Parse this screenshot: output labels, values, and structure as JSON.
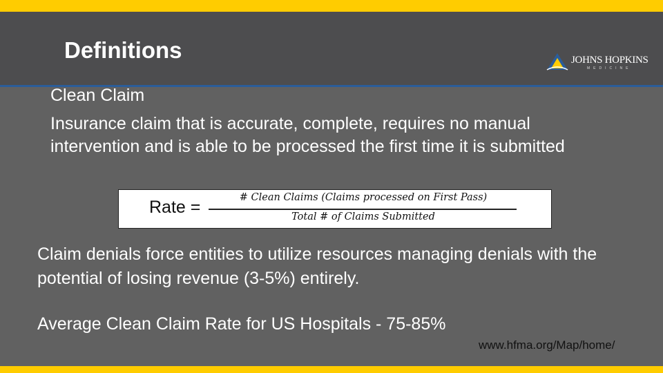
{
  "slide": {
    "title": "Definitions",
    "logo": {
      "name": "JOHNS HOPKINS",
      "sub": "MEDICINE"
    },
    "term": "Clean Claim",
    "definition": "Insurance claim that is accurate, complete, requires no manual intervention and is able to be processed the first time it is submitted",
    "formula": {
      "lhs": "Rate =",
      "numerator": "# Clean Claims (Claims processed on First Pass)",
      "denominator": "Total # of Claims Submitted"
    },
    "paragraph_denials": "Claim denials force entities to utilize resources managing denials with the potential of losing revenue (3-5%) entirely.",
    "paragraph_average": "Average Clean Claim Rate for US Hospitals - 75-85%",
    "source": "www.hfma.org/Map/home/"
  },
  "colors": {
    "accent": "#ffcc00",
    "header_bg": "#4d4d4f",
    "body_bg": "#616161",
    "rule": "#2b5d9a"
  }
}
